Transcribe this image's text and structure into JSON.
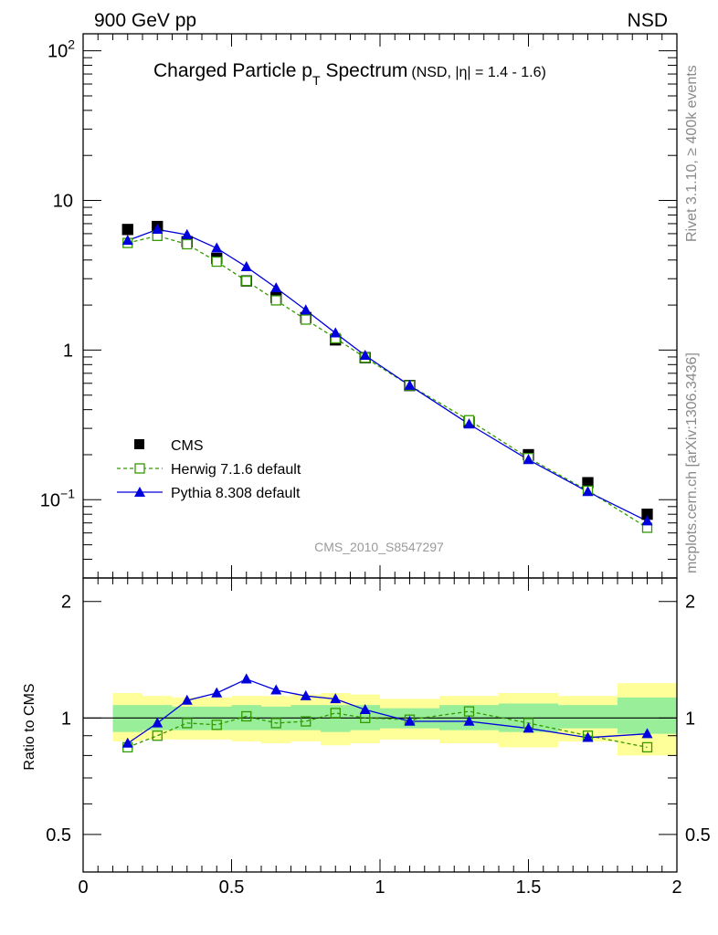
{
  "header": {
    "left": "900 GeV pp",
    "right": "NSD"
  },
  "side_labels": {
    "rivet": "Rivet 3.1.10, ≥ 400k events",
    "mcplots": "mcplots.cern.ch [arXiv:1306.3436]"
  },
  "chart_data": [
    {
      "type": "scatter",
      "title": "Charged Particle p",
      "title_subscript": "T",
      "title_suffix": "Spectrum",
      "title_small": "(NSD, |η| = 1.4 - 1.6)",
      "watermark": "CMS_2010_S8547297",
      "yscale": "log",
      "xlim": [
        0,
        2
      ],
      "ylim": [
        0.03,
        130
      ],
      "yticks": [
        {
          "value": 100,
          "base": "10",
          "exp": "2"
        },
        {
          "value": 10,
          "base": "10",
          "exp": ""
        },
        {
          "value": 1,
          "base": "1",
          "exp": ""
        },
        {
          "value": 0.1,
          "base": "10",
          "exp": "−1"
        }
      ],
      "legend_position": "lower-left",
      "series": [
        {
          "name": "CMS",
          "style": "black-filled-square",
          "color": "#000000",
          "x": [
            0.15,
            0.25,
            0.35,
            0.45,
            0.55,
            0.65,
            0.75,
            0.85,
            0.95,
            1.1,
            1.3,
            1.5,
            1.7,
            1.9
          ],
          "values": [
            6.4,
            6.7,
            5.3,
            4.1,
            2.9,
            2.25,
            1.65,
            1.17,
            0.89,
            0.58,
            0.33,
            0.2,
            0.13,
            0.08
          ]
        },
        {
          "name": "Herwig 7.1.6 default",
          "style": "green-open-square-dashed",
          "color": "#339900",
          "x": [
            0.15,
            0.25,
            0.35,
            0.45,
            0.55,
            0.65,
            0.75,
            0.85,
            0.95,
            1.1,
            1.3,
            1.5,
            1.7,
            1.9
          ],
          "values": [
            5.2,
            5.8,
            5.1,
            3.9,
            2.9,
            2.15,
            1.6,
            1.2,
            0.89,
            0.58,
            0.34,
            0.19,
            0.115,
            0.065
          ]
        },
        {
          "name": "Pythia 8.308 default",
          "style": "blue-filled-triangle-solid",
          "color": "#0000dd",
          "x": [
            0.15,
            0.25,
            0.35,
            0.45,
            0.55,
            0.65,
            0.75,
            0.85,
            0.95,
            1.1,
            1.3,
            1.5,
            1.7,
            1.9
          ],
          "values": [
            5.4,
            6.4,
            5.9,
            4.8,
            3.6,
            2.6,
            1.85,
            1.3,
            0.92,
            0.58,
            0.32,
            0.185,
            0.113,
            0.072
          ]
        }
      ]
    },
    {
      "type": "line",
      "ylabel": "Ratio to CMS",
      "xlim": [
        0,
        2
      ],
      "ylim": [
        0.4,
        2.3
      ],
      "yscale": "log",
      "xticks": [
        "0",
        "0.5",
        "1",
        "1.5",
        "2"
      ],
      "yticks": [
        "0.5",
        "1",
        "2"
      ],
      "reference_line": 1,
      "uncertainty_bands": {
        "x_edges": [
          0.1,
          0.2,
          0.3,
          0.4,
          0.5,
          0.6,
          0.7,
          0.8,
          0.9,
          1.0,
          1.2,
          1.4,
          1.6,
          1.8,
          2.0
        ],
        "inner_color": "#99ee99",
        "outer_color": "#ffff99",
        "inner": [
          [
            0.92,
            1.08
          ],
          [
            0.93,
            1.08
          ],
          [
            0.93,
            1.07
          ],
          [
            0.93,
            1.07
          ],
          [
            0.93,
            1.08
          ],
          [
            0.93,
            1.07
          ],
          [
            0.93,
            1.08
          ],
          [
            0.92,
            1.08
          ],
          [
            0.93,
            1.08
          ],
          [
            0.94,
            1.06
          ],
          [
            0.93,
            1.08
          ],
          [
            0.92,
            1.09
          ],
          [
            0.94,
            1.08
          ],
          [
            0.91,
            1.13
          ]
        ],
        "outer": [
          [
            0.87,
            1.16
          ],
          [
            0.88,
            1.14
          ],
          [
            0.88,
            1.13
          ],
          [
            0.88,
            1.13
          ],
          [
            0.87,
            1.14
          ],
          [
            0.86,
            1.14
          ],
          [
            0.87,
            1.15
          ],
          [
            0.85,
            1.16
          ],
          [
            0.86,
            1.15
          ],
          [
            0.88,
            1.12
          ],
          [
            0.86,
            1.14
          ],
          [
            0.84,
            1.16
          ],
          [
            0.87,
            1.14
          ],
          [
            0.8,
            1.23
          ]
        ]
      },
      "series": [
        {
          "name": "Herwig 7.1.6 default",
          "color": "#339900",
          "x": [
            0.15,
            0.25,
            0.35,
            0.45,
            0.55,
            0.65,
            0.75,
            0.85,
            0.95,
            1.1,
            1.3,
            1.5,
            1.7,
            1.9
          ],
          "values": [
            0.84,
            0.9,
            0.97,
            0.96,
            1.01,
            0.97,
            0.98,
            1.03,
            1.0,
            0.99,
            1.04,
            0.97,
            0.9,
            0.84
          ]
        },
        {
          "name": "Pythia 8.308 default",
          "color": "#0000dd",
          "x": [
            0.15,
            0.25,
            0.35,
            0.45,
            0.55,
            0.65,
            0.75,
            0.85,
            0.95,
            1.1,
            1.3,
            1.5,
            1.7,
            1.9
          ],
          "values": [
            0.86,
            0.97,
            1.11,
            1.16,
            1.26,
            1.18,
            1.14,
            1.12,
            1.05,
            0.98,
            0.98,
            0.94,
            0.89,
            0.91
          ]
        }
      ]
    }
  ]
}
